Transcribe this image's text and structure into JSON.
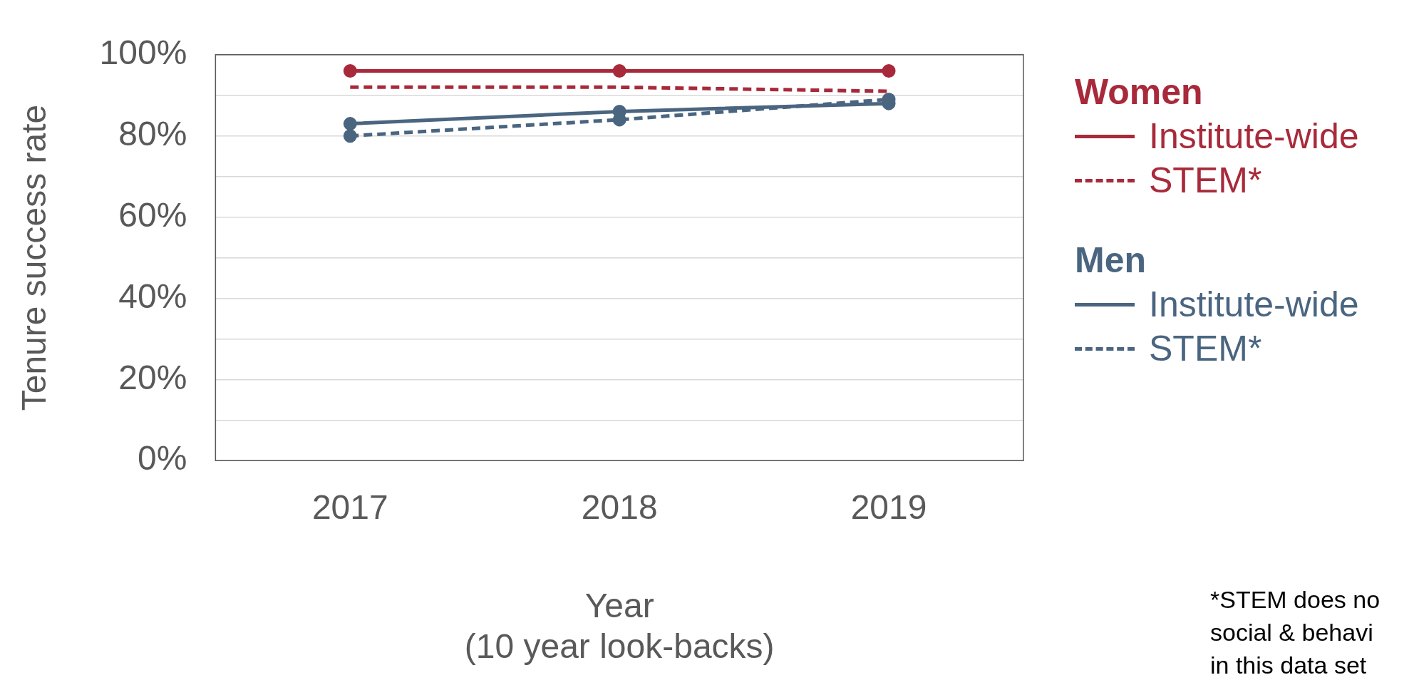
{
  "chart_data": {
    "type": "line",
    "categories": [
      "2017",
      "2018",
      "2019"
    ],
    "series": [
      {
        "name": "Institute-wide",
        "color": "#a82a3a",
        "values": [
          96,
          96,
          96
        ],
        "line_style": "solid",
        "marker": "circle"
      },
      {
        "name": "STEM*",
        "color": "#a82a3a",
        "values": [
          92,
          92,
          91
        ],
        "line_style": "dashed",
        "marker": "none"
      },
      {
        "name": "Institute-wide",
        "color": "#4a6580",
        "values": [
          83,
          86,
          88
        ],
        "line_style": "solid",
        "marker": "circle"
      },
      {
        "name": "STEM*",
        "color": "#4a6580",
        "values": [
          80,
          84,
          89
        ],
        "line_style": "dashed",
        "marker": "circle"
      }
    ],
    "ylim": [
      0,
      100
    ],
    "yticks": [
      {
        "value": 0,
        "label": "0%"
      },
      {
        "value": 10,
        "label": null
      },
      {
        "value": 20,
        "label": "20%"
      },
      {
        "value": 30,
        "label": null
      },
      {
        "value": 40,
        "label": "40%"
      },
      {
        "value": 50,
        "label": null
      },
      {
        "value": 60,
        "label": "60%"
      },
      {
        "value": 70,
        "label": null
      },
      {
        "value": 80,
        "label": "80%"
      },
      {
        "value": 90,
        "label": null
      },
      {
        "value": 100,
        "label": "100%"
      }
    ],
    "ylabel": "Tenure success rate",
    "xlabel": "Year\n(10 year look-backs)",
    "grid": "y",
    "legend": "right",
    "annotations": [
      "Women",
      "Men",
      "*STEM does no\nsocial & behavi\nin this data set"
    ]
  }
}
